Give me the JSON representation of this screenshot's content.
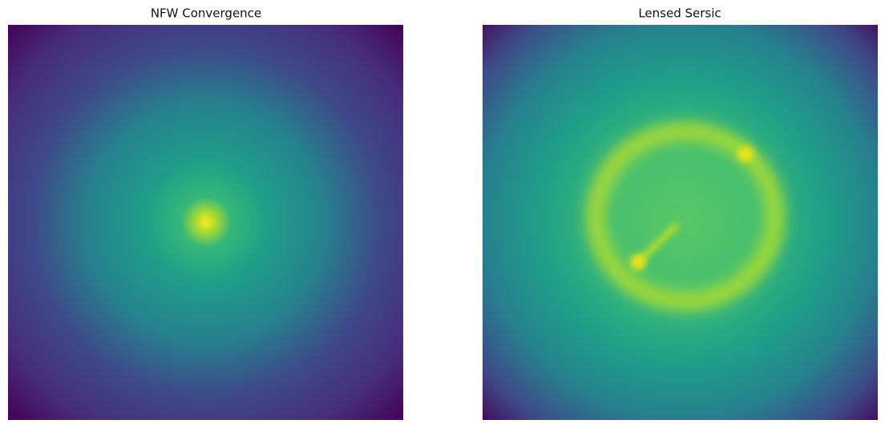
{
  "panels": [
    {
      "title": "NFW Convergence"
    },
    {
      "title": "Lensed Sersic"
    }
  ]
}
